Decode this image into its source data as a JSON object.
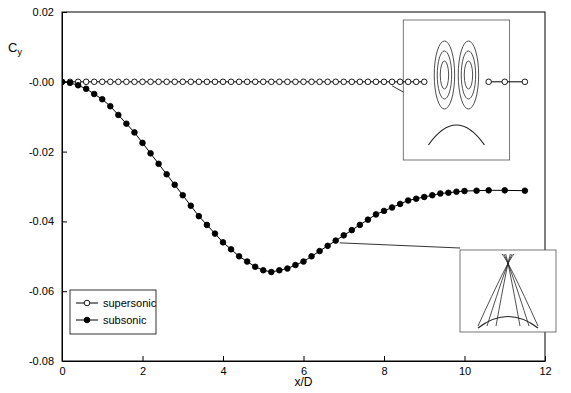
{
  "chart_data": {
    "type": "line",
    "x_label": "x/D",
    "y_label": "Cy",
    "x": [
      0,
      0.2,
      0.4,
      0.6,
      0.8,
      1.0,
      1.2,
      1.4,
      1.6,
      1.8,
      2.0,
      2.2,
      2.4,
      2.6,
      2.8,
      3.0,
      3.2,
      3.4,
      3.6,
      3.8,
      4.0,
      4.2,
      4.4,
      4.6,
      4.8,
      5.0,
      5.2,
      5.4,
      5.6,
      5.8,
      6.0,
      6.2,
      6.4,
      6.6,
      6.8,
      7.0,
      7.2,
      7.4,
      7.6,
      7.8,
      8.0,
      8.2,
      8.4,
      8.6,
      8.8,
      9.0,
      9.2,
      9.4,
      9.6,
      9.8,
      10.0,
      10.3,
      10.6,
      11.0,
      11.5
    ],
    "series": [
      {
        "name": "supersonic",
        "color": "#000000",
        "marker": "open-circle",
        "values": [
          0,
          0,
          0,
          0,
          0,
          0,
          0,
          0,
          0,
          0,
          0,
          0,
          0,
          0,
          0,
          0,
          0,
          0,
          0,
          0,
          0,
          0,
          0,
          0,
          0,
          0,
          0,
          0,
          0,
          0,
          0,
          0,
          0,
          0,
          0,
          0,
          0,
          0,
          0,
          0,
          0,
          0,
          0,
          0,
          0,
          0,
          null,
          null,
          null,
          null,
          null,
          null,
          0,
          0,
          0
        ]
      },
      {
        "name": "subsonic",
        "color": "#000000",
        "marker": "filled-circle",
        "values": [
          0,
          -0.0003,
          -0.001,
          -0.002,
          -0.0035,
          -0.005,
          -0.007,
          -0.0095,
          -0.012,
          -0.0145,
          -0.0175,
          -0.0205,
          -0.0235,
          -0.0265,
          -0.0295,
          -0.0325,
          -0.0355,
          -0.0385,
          -0.041,
          -0.0435,
          -0.046,
          -0.048,
          -0.05,
          -0.0515,
          -0.053,
          -0.054,
          -0.0545,
          -0.054,
          -0.0535,
          -0.0525,
          -0.0515,
          -0.05,
          -0.0485,
          -0.047,
          -0.0455,
          -0.044,
          -0.0425,
          -0.041,
          -0.0395,
          -0.038,
          -0.037,
          -0.036,
          -0.035,
          -0.034,
          -0.0335,
          -0.033,
          -0.0325,
          -0.032,
          -0.0318,
          -0.0315,
          -0.0313,
          -0.0312,
          -0.0311,
          -0.0311,
          -0.0312
        ]
      }
    ],
    "xlim": [
      0,
      12
    ],
    "ylim": [
      -0.08,
      0.02
    ],
    "xticks": [
      0,
      2,
      4,
      6,
      8,
      10,
      12
    ],
    "yticks": [
      -0.08,
      -0.06,
      -0.04,
      -0.02,
      {
        "value": 0,
        "label": "-0.00"
      },
      0.02
    ],
    "legend": "lower left"
  }
}
